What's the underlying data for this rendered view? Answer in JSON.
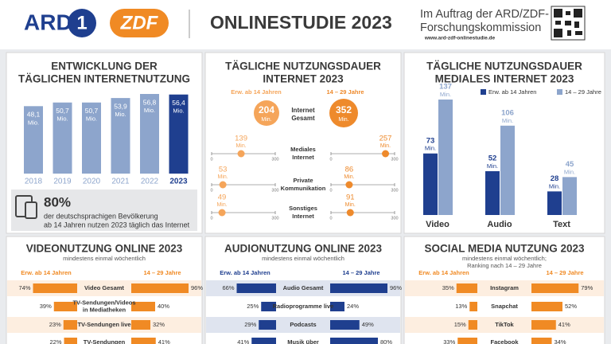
{
  "header": {
    "logo_ard": "ARD",
    "logo_ard_mark": "1",
    "logo_zdf": "ZDF",
    "title": "ONLINESTUDIE 2023",
    "commission": [
      "Im Auftrag der ARD/ZDF-",
      "Forschungskommission"
    ],
    "url": "www.ard-zdf-onlinestudie.de"
  },
  "chart_data": [
    {
      "type": "bar",
      "title": [
        "ENTWICKLUNG DER",
        "TÄGLICHEN INTERNETNUTZUNG"
      ],
      "categories": [
        "2018",
        "2019",
        "2020",
        "2021",
        "2022",
        "2023"
      ],
      "values": [
        48.1,
        50.7,
        50.7,
        53.9,
        56.8,
        56.4
      ],
      "value_labels": [
        "48,1",
        "50,7",
        "50,7",
        "53,9",
        "56,8",
        "56,4"
      ],
      "unit": "Mio.",
      "colors": [
        "#8da5cc",
        "#8da5cc",
        "#8da5cc",
        "#8da5cc",
        "#8da5cc",
        "#1f3f8f"
      ],
      "note": {
        "value": 80,
        "label": "80%",
        "text": [
          "der deutschsprachigen Bevölkerung",
          "ab 14 Jahren nutzen 2023 täglich das Internet"
        ]
      }
    },
    {
      "type": "slider",
      "title": [
        "TÄGLICHE NUTZUNGSDAUER",
        "INTERNET 2023"
      ],
      "total_label": [
        "Internet",
        "Gesamt"
      ],
      "categories": [
        [
          "Mediales",
          "Internet"
        ],
        [
          "Private",
          "Kommunikation"
        ],
        [
          "Sonstiges",
          "Internet"
        ]
      ],
      "series": [
        {
          "name": "Erw. ab 14 Jahren",
          "color": "#f5a55a",
          "total": 204,
          "values": [
            139,
            53,
            49
          ]
        },
        {
          "name": "14 – 29 Jahre",
          "color": "#ee8a2c",
          "total": 352,
          "values": [
            257,
            86,
            91
          ]
        }
      ],
      "unit": "Min.",
      "xlim": [
        0,
        300
      ],
      "xticks": [
        0,
        300
      ]
    },
    {
      "type": "grouped-bar",
      "title": [
        "TÄGLICHE NUTZUNGSDAUER",
        "MEDIALES INTERNET 2023"
      ],
      "categories": [
        "Video",
        "Audio",
        "Text"
      ],
      "series": [
        {
          "name": "Erw. ab 14 Jahren",
          "color": "#1f3f8f",
          "values": [
            73,
            52,
            28
          ]
        },
        {
          "name": "14 – 29 Jahre",
          "color": "#8da5cc",
          "values": [
            137,
            106,
            45
          ]
        }
      ],
      "unit": "Min."
    },
    {
      "type": "butterfly",
      "title": "VIDEONUTZUNG ONLINE 2023",
      "subtitle": [
        "mindestens einmal wöchentlich"
      ],
      "categories": [
        [
          "Video Gesamt"
        ],
        [
          "TV-Sendungen/Videos",
          "in Mediatheken"
        ],
        [
          "TV-Sendungen live"
        ],
        [
          "TV-Sendungen"
        ]
      ],
      "series": [
        {
          "name": "Erw. ab 14 Jahren",
          "color": "#f08a24",
          "values": [
            74,
            39,
            23,
            22
          ],
          "value_labels": [
            "74%",
            "39%",
            "23%",
            "22%"
          ]
        },
        {
          "name": "14 – 29 Jahre",
          "color": "#f08a24",
          "values": [
            96,
            40,
            32,
            41
          ],
          "value_labels": [
            "96%",
            "40%",
            "32%",
            "41%"
          ]
        }
      ]
    },
    {
      "type": "butterfly",
      "title": "AUDIONUTZUNG ONLINE 2023",
      "subtitle": [
        "mindestens einmal wöchentlich"
      ],
      "categories": [
        [
          "Audio Gesamt"
        ],
        [
          "Radioprogramme live"
        ],
        [
          "Podcasts"
        ],
        [
          "Musik über"
        ]
      ],
      "series": [
        {
          "name": "Erw. ab 14 Jahren",
          "color": "#1f3f8f",
          "values": [
            66,
            25,
            29,
            41
          ],
          "value_labels": [
            "66%",
            "25%",
            "29%",
            "41%"
          ]
        },
        {
          "name": "14 – 29 Jahre",
          "color": "#1f3f8f",
          "values": [
            96,
            24,
            49,
            80
          ],
          "value_labels": [
            "96%",
            "24%",
            "49%",
            "80%"
          ]
        }
      ]
    },
    {
      "type": "butterfly",
      "title": "SOCIAL MEDIA NUTZUNG 2023",
      "subtitle": [
        "mindestens einmal wöchentlich;",
        "Ranking nach 14 – 29 Jahre"
      ],
      "categories": [
        [
          "Instagram"
        ],
        [
          "Snapchat"
        ],
        [
          "TikTok"
        ],
        [
          "Facebook"
        ]
      ],
      "series": [
        {
          "name": "Erw. ab 14 Jahren",
          "color": "#f08a24",
          "values": [
            35,
            13,
            15,
            33
          ],
          "value_labels": [
            "35%",
            "13%",
            "15%",
            "33%"
          ]
        },
        {
          "name": "14 – 29 Jahre",
          "color": "#f08a24",
          "values": [
            79,
            52,
            41,
            34
          ],
          "value_labels": [
            "79%",
            "52%",
            "41%",
            "34%"
          ]
        }
      ]
    }
  ]
}
